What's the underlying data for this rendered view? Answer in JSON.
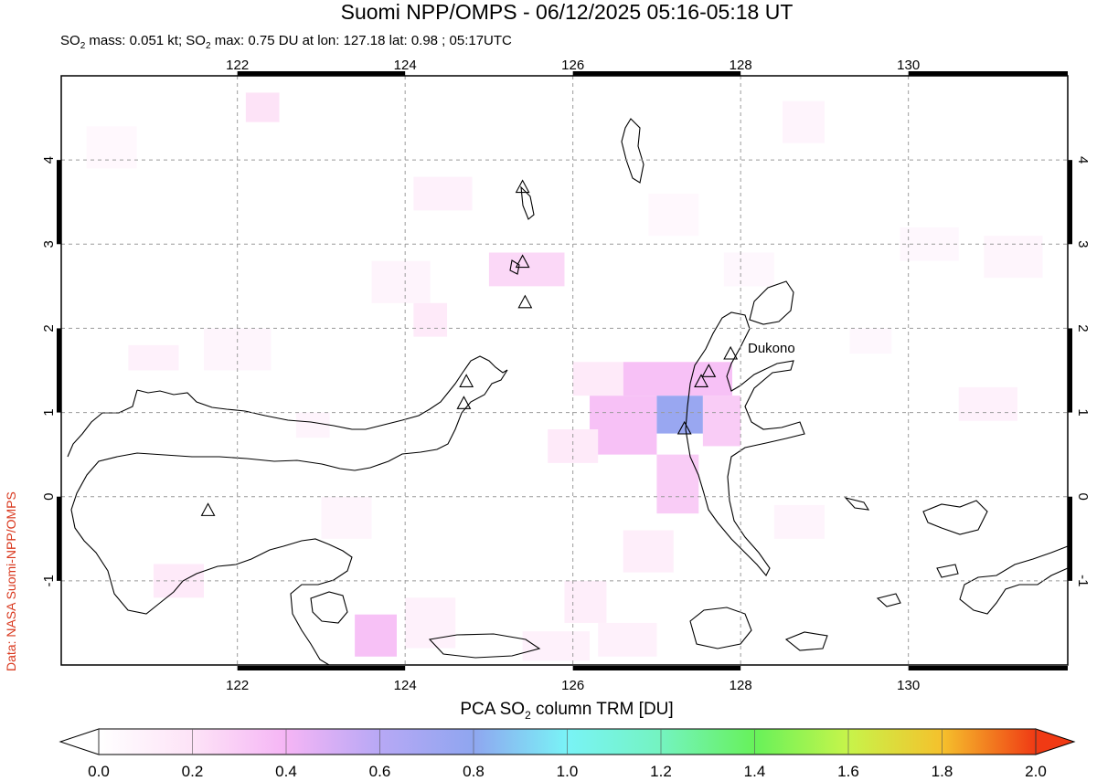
{
  "title": "Suomi NPP/OMPS - 06/12/2025 05:16-05:18 UT",
  "subtitle": {
    "prefix": "SO",
    "mass_label": " mass: 0.051 kt; SO",
    "rest": " max: 0.75 DU at lon: 127.18 lat: 0.98 ; 05:17UTC"
  },
  "side_label": "Data: NASA Suomi-NPP/OMPS",
  "colors": {
    "coast": "#000000",
    "grid": "#9a9a9a",
    "side_label": "#d9381e",
    "border": "#000000"
  },
  "map": {
    "lon_range": [
      119.9,
      131.9
    ],
    "lat_range": [
      -2.0,
      5.0
    ],
    "lon_ticks": [
      122,
      124,
      126,
      128,
      130
    ],
    "lat_ticks": [
      4,
      3,
      2,
      1,
      0,
      -1
    ],
    "lon_tick_labels": [
      "122",
      "124",
      "126",
      "128",
      "130"
    ],
    "lat_tick_labels": [
      "4",
      "3",
      "2",
      "1",
      "0",
      "-1"
    ],
    "volcano_label": "Dukono",
    "volcanoes": [
      {
        "lon": 127.88,
        "lat": 1.69
      },
      {
        "lon": 127.62,
        "lat": 1.48
      },
      {
        "lon": 127.53,
        "lat": 1.36
      },
      {
        "lon": 127.33,
        "lat": 0.8
      },
      {
        "lon": 125.4,
        "lat": 3.67
      },
      {
        "lon": 125.4,
        "lat": 2.78
      },
      {
        "lon": 125.43,
        "lat": 2.3
      },
      {
        "lon": 124.73,
        "lat": 1.36
      },
      {
        "lon": 124.7,
        "lat": 1.1
      },
      {
        "lon": 121.65,
        "lat": -0.17
      }
    ],
    "so2_pixels": [
      {
        "lon0": 127.0,
        "lon1": 127.55,
        "lat0": 0.75,
        "lat1": 1.2,
        "du": 0.75
      },
      {
        "lon0": 126.2,
        "lon1": 127.0,
        "lat0": 0.5,
        "lat1": 1.2,
        "du": 0.35
      },
      {
        "lon0": 127.55,
        "lon1": 128.0,
        "lat0": 0.6,
        "lat1": 1.2,
        "du": 0.3
      },
      {
        "lon0": 126.6,
        "lon1": 127.9,
        "lat0": 1.2,
        "lat1": 1.6,
        "du": 0.35
      },
      {
        "lon0": 127.0,
        "lon1": 127.5,
        "lat0": -0.2,
        "lat1": 0.5,
        "du": 0.3
      },
      {
        "lon0": 126.0,
        "lon1": 126.6,
        "lat0": 1.2,
        "lat1": 1.6,
        "du": 0.15
      },
      {
        "lon0": 125.0,
        "lon1": 125.9,
        "lat0": 2.5,
        "lat1": 2.9,
        "du": 0.25
      },
      {
        "lon0": 123.4,
        "lon1": 123.9,
        "lat0": -1.9,
        "lat1": -1.4,
        "du": 0.35
      },
      {
        "lon0": 122.1,
        "lon1": 122.5,
        "lat0": 4.45,
        "lat1": 4.8,
        "du": 0.2
      },
      {
        "lon0": 124.1,
        "lon1": 124.5,
        "lat0": 1.9,
        "lat1": 2.3,
        "du": 0.15
      },
      {
        "lon0": 125.7,
        "lon1": 126.3,
        "lat0": 0.4,
        "lat1": 0.8,
        "du": 0.15
      },
      {
        "lon0": 126.6,
        "lon1": 127.2,
        "lat0": -0.9,
        "lat1": -0.4,
        "du": 0.12
      },
      {
        "lon0": 125.9,
        "lon1": 126.4,
        "lat0": -1.5,
        "lat1": -1.0,
        "du": 0.12
      },
      {
        "lon0": 121.0,
        "lon1": 121.6,
        "lat0": -1.2,
        "lat1": -0.8,
        "du": 0.15
      },
      {
        "lon0": 120.7,
        "lon1": 121.3,
        "lat0": 1.5,
        "lat1": 1.8,
        "du": 0.1
      },
      {
        "lon0": 124.1,
        "lon1": 124.8,
        "lat0": 3.4,
        "lat1": 3.8,
        "du": 0.1
      },
      {
        "lon0": 123.6,
        "lon1": 124.3,
        "lat0": 2.3,
        "lat1": 2.8,
        "du": 0.08
      },
      {
        "lon0": 128.5,
        "lon1": 129.0,
        "lat0": 4.2,
        "lat1": 4.7,
        "du": 0.08
      },
      {
        "lon0": 130.6,
        "lon1": 131.3,
        "lat0": 0.9,
        "lat1": 1.3,
        "du": 0.1
      },
      {
        "lon0": 129.9,
        "lon1": 130.6,
        "lat0": 2.8,
        "lat1": 3.2,
        "du": 0.06
      },
      {
        "lon0": 128.4,
        "lon1": 129.0,
        "lat0": -0.5,
        "lat1": -0.1,
        "du": 0.08
      },
      {
        "lon0": 124.0,
        "lon1": 124.6,
        "lat0": -1.8,
        "lat1": -1.2,
        "du": 0.1
      },
      {
        "lon0": 126.3,
        "lon1": 127.0,
        "lat0": -1.9,
        "lat1": -1.5,
        "du": 0.1
      },
      {
        "lon0": 125.4,
        "lon1": 126.2,
        "lat0": -1.95,
        "lat1": -1.6,
        "du": 0.1
      },
      {
        "lon0": 122.7,
        "lon1": 123.1,
        "lat0": 0.7,
        "lat1": 1.0,
        "du": 0.08
      },
      {
        "lon0": 121.6,
        "lon1": 122.4,
        "lat0": 1.5,
        "lat1": 2.0,
        "du": 0.07
      },
      {
        "lon0": 123.0,
        "lon1": 123.6,
        "lat0": -0.5,
        "lat1": 0.0,
        "du": 0.07
      },
      {
        "lon0": 129.3,
        "lon1": 129.8,
        "lat0": 1.7,
        "lat1": 2.0,
        "du": 0.06
      },
      {
        "lon0": 130.9,
        "lon1": 131.6,
        "lat0": 2.6,
        "lat1": 3.1,
        "du": 0.07
      },
      {
        "lon0": 120.2,
        "lon1": 120.8,
        "lat0": 3.9,
        "lat1": 4.4,
        "du": 0.05
      },
      {
        "lon0": 127.8,
        "lon1": 128.4,
        "lat0": 2.5,
        "lat1": 2.9,
        "du": 0.06
      },
      {
        "lon0": 126.9,
        "lon1": 127.5,
        "lat0": 3.1,
        "lat1": 3.6,
        "du": 0.05
      }
    ]
  },
  "colorbar": {
    "title_prefix": "PCA SO",
    "title_suffix": " column TRM [DU]",
    "min": 0.0,
    "max": 2.0,
    "tick_values": [
      0.0,
      0.2,
      0.4,
      0.6,
      0.8,
      1.0,
      1.2,
      1.4,
      1.6,
      1.8,
      2.0
    ],
    "tick_labels": [
      "0.0",
      "0.2",
      "0.4",
      "0.6",
      "0.8",
      "1.0",
      "1.2",
      "1.4",
      "1.6",
      "1.8",
      "2.0"
    ],
    "stops": [
      {
        "v": 0.0,
        "c": "#ffffff"
      },
      {
        "v": 0.2,
        "c": "#fde3f7"
      },
      {
        "v": 0.4,
        "c": "#f5b5f5"
      },
      {
        "v": 0.6,
        "c": "#b7a8f5"
      },
      {
        "v": 0.8,
        "c": "#8fa6f0"
      },
      {
        "v": 1.0,
        "c": "#79f3f6"
      },
      {
        "v": 1.2,
        "c": "#74f3c0"
      },
      {
        "v": 1.4,
        "c": "#67f25a"
      },
      {
        "v": 1.6,
        "c": "#c7f44a"
      },
      {
        "v": 1.8,
        "c": "#f5c12c"
      },
      {
        "v": 2.0,
        "c": "#f03a14"
      }
    ]
  }
}
